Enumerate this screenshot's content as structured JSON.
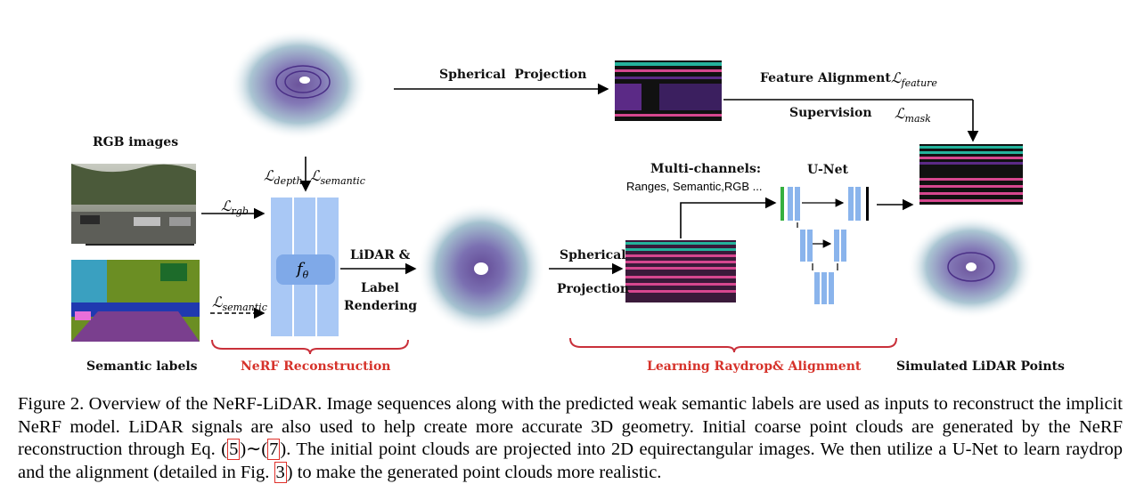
{
  "figure": {
    "labels": {
      "rgb_images": "RGB images",
      "semantic_labels": "Semantic labels",
      "nerf_reconstruction": "NeRF Reconstruction",
      "lidar_label_line1": "LiDAR &",
      "lidar_label_line2": "Label",
      "lidar_label_line3": "Rendering",
      "spherical_projection_top": "Spherical  Projection",
      "spherical_line1": "Spherical",
      "spherical_line2": "Projection",
      "feature_alignment": "Feature Alignment",
      "supervision": "Supervision",
      "multi_channels": "Multi-channels:",
      "multi_channels_detail": "Ranges, Semantic,RGB ...",
      "unet": "U-Net",
      "learning_raydrop": "Learning Raydrop& Alignment",
      "simulated_lidar": "Simulated LiDAR Points"
    },
    "losses": {
      "rgb": "rgb",
      "semantic": "semantic",
      "depth": "depth",
      "feature": "feature",
      "mask": "mask",
      "f_theta": "f",
      "theta": "θ",
      "script_L": "ℒ"
    },
    "colors": {
      "network_blue": "#a9c8f5",
      "network_dark": "#7fa9e8",
      "brace_red": "#c9303a",
      "unet_blue": "#8ab4ec",
      "range_purple": "#5b2a86",
      "range_teal": "#24b39c",
      "range_pink": "#d6478f"
    }
  },
  "caption": {
    "part1": "Figure 2. Overview of the NeRF-LiDAR. Image sequences along with the predicted weak semantic labels are used as inputs to reconstruct the implicit NeRF model. LiDAR signals are also used to help create more accurate 3D geometry. Initial coarse point clouds are generated by the NeRF reconstruction through Eq. (",
    "ref1": "5",
    "part2": ")∼(",
    "ref2": "7",
    "part3": "). The initial point clouds are projected into 2D equirectangular images. We then utilize a U-Net to learn raydrop and the alignment (detailed in Fig. ",
    "ref3": "3",
    "part4": ") to make the generated point clouds more realistic."
  }
}
